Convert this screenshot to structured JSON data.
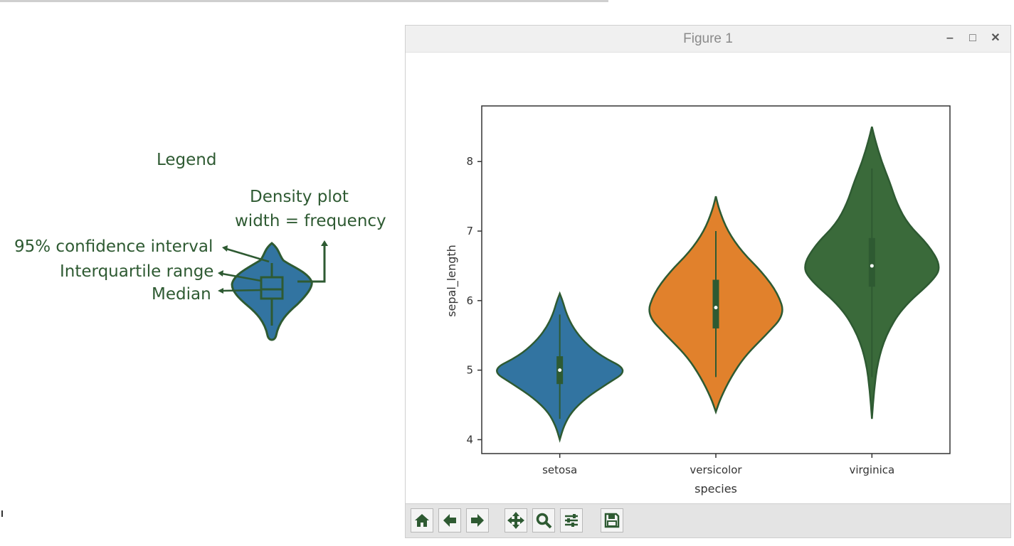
{
  "legend": {
    "title": "Legend",
    "density_line1": "Density plot",
    "density_line2": "width = frequency",
    "ci_label": "95% confidence interval",
    "iqr_label": "Interquartile range",
    "median_label": "Median"
  },
  "window": {
    "title": "Figure 1",
    "minimize_label": "‒",
    "maximize_label": "□",
    "close_label": "✕"
  },
  "toolbar": {
    "buttons": [
      "home-icon",
      "back-icon",
      "forward-icon",
      "pan-icon",
      "zoom-icon",
      "configure-icon",
      "save-icon"
    ]
  },
  "colors": {
    "setosa": "#3274a1",
    "versicolor": "#e1812c",
    "virginica": "#3a6a3a",
    "annotation": "#2e5a32",
    "outline": "#2e5a32"
  },
  "chart_data": {
    "type": "violin",
    "xlabel": "species",
    "ylabel": "sepal_length",
    "categories": [
      "setosa",
      "versicolor",
      "virginica"
    ],
    "ylim": [
      3.8,
      8.8
    ],
    "yticks": [
      4,
      5,
      6,
      7,
      8
    ],
    "series": [
      {
        "category": "setosa",
        "min": 4.3,
        "q1": 4.8,
        "median": 5.0,
        "q3": 5.2,
        "max": 5.8,
        "kde_low": 4.0,
        "kde_high": 6.1,
        "density": [
          [
            4.0,
            0.0
          ],
          [
            4.2,
            0.06
          ],
          [
            4.4,
            0.17
          ],
          [
            4.6,
            0.38
          ],
          [
            4.8,
            0.68
          ],
          [
            5.0,
            1.0
          ],
          [
            5.2,
            0.6
          ],
          [
            5.4,
            0.36
          ],
          [
            5.6,
            0.2
          ],
          [
            5.8,
            0.1
          ],
          [
            6.0,
            0.04
          ],
          [
            6.1,
            0.0
          ]
        ]
      },
      {
        "category": "versicolor",
        "min": 4.9,
        "q1": 5.6,
        "median": 5.9,
        "q3": 6.3,
        "max": 7.0,
        "kde_low": 4.4,
        "kde_high": 7.5,
        "density": [
          [
            4.4,
            0.0
          ],
          [
            4.6,
            0.07
          ],
          [
            4.9,
            0.22
          ],
          [
            5.2,
            0.42
          ],
          [
            5.5,
            0.72
          ],
          [
            5.8,
            1.0
          ],
          [
            6.1,
            0.9
          ],
          [
            6.4,
            0.68
          ],
          [
            6.7,
            0.38
          ],
          [
            7.0,
            0.17
          ],
          [
            7.3,
            0.05
          ],
          [
            7.5,
            0.0
          ]
        ]
      },
      {
        "category": "virginica",
        "min": 4.9,
        "q1": 6.2,
        "median": 6.5,
        "q3": 6.9,
        "max": 7.9,
        "kde_low": 4.3,
        "kde_high": 8.5,
        "density": [
          [
            4.3,
            0.0
          ],
          [
            4.7,
            0.03
          ],
          [
            5.1,
            0.08
          ],
          [
            5.5,
            0.2
          ],
          [
            5.9,
            0.44
          ],
          [
            6.3,
            0.9
          ],
          [
            6.5,
            1.0
          ],
          [
            6.8,
            0.82
          ],
          [
            7.1,
            0.52
          ],
          [
            7.4,
            0.36
          ],
          [
            7.7,
            0.26
          ],
          [
            8.0,
            0.14
          ],
          [
            8.3,
            0.05
          ],
          [
            8.5,
            0.0
          ]
        ]
      }
    ]
  }
}
